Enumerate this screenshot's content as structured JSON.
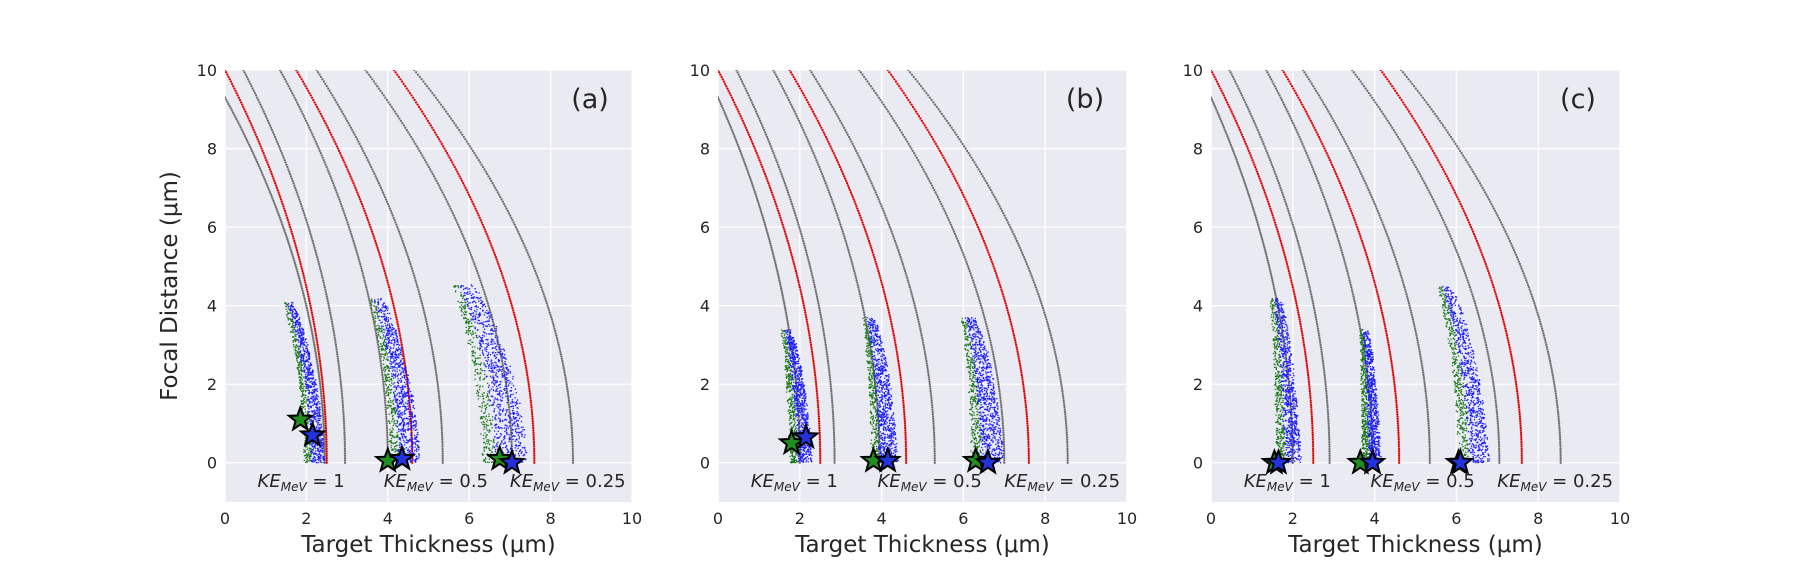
{
  "chart_data": [
    {
      "type": "scatter",
      "panel_label": "(a)",
      "xlabel": "Target Thickness (μm)",
      "ylabel": "Focal Distance (μm)",
      "xlim": [
        0,
        10
      ],
      "ylim": [
        -1,
        10
      ],
      "xticks": [
        "0",
        "2",
        "4",
        "6",
        "8",
        "10"
      ],
      "yticks": [
        "0",
        "2",
        "4",
        "6",
        "8",
        "10"
      ],
      "grid": true,
      "bands": [
        {
          "top": [
            1.45,
            4.1
          ],
          "bottom": [
            1.95,
            0.0
          ],
          "width": 0.5,
          "green_frac": 0.35
        },
        {
          "top": [
            3.55,
            4.2
          ],
          "bottom": [
            4.05,
            0.0
          ],
          "width": 0.75,
          "green_frac": 0.3
        },
        {
          "top": [
            5.6,
            4.55
          ],
          "bottom": [
            6.3,
            0.0
          ],
          "width": 1.15,
          "green_frac": 0.3
        }
      ],
      "gray_curves": [
        {
          "top": [
            0.0,
            9.3
          ],
          "bottom": [
            2.45,
            0.0
          ]
        },
        {
          "top": [
            0.45,
            10.0
          ],
          "bottom": [
            2.95,
            0.0
          ]
        },
        {
          "top": [
            1.35,
            10.0
          ],
          "bottom": [
            4.0,
            0.0
          ]
        },
        {
          "top": [
            2.25,
            10.0
          ],
          "bottom": [
            5.35,
            0.0
          ]
        },
        {
          "top": [
            3.45,
            10.0
          ],
          "bottom": [
            7.05,
            0.0
          ]
        },
        {
          "top": [
            4.65,
            10.0
          ],
          "bottom": [
            8.55,
            0.0
          ]
        }
      ],
      "red_curves": [
        {
          "top": [
            0.0,
            10.0
          ],
          "bottom": [
            2.5,
            0.0
          ]
        },
        {
          "top": [
            1.75,
            10.0
          ],
          "bottom": [
            4.6,
            0.0
          ]
        },
        {
          "top": [
            4.15,
            10.0
          ],
          "bottom": [
            7.6,
            0.0
          ]
        }
      ],
      "stars": [
        {
          "color": "green",
          "x": 1.85,
          "y": 1.1
        },
        {
          "color": "blue",
          "x": 2.15,
          "y": 0.7
        },
        {
          "color": "green",
          "x": 4.0,
          "y": 0.05
        },
        {
          "color": "blue",
          "x": 4.35,
          "y": 0.1
        },
        {
          "color": "green",
          "x": 6.75,
          "y": 0.1
        },
        {
          "color": "blue",
          "x": 7.05,
          "y": 0.0
        }
      ],
      "annotations": [
        {
          "main": "KE",
          "sub": "MeV",
          "rest": " = 1",
          "x": 0.8,
          "y": -0.62
        },
        {
          "main": "KE",
          "sub": "MeV",
          "rest": " = 0.5",
          "x": 3.9,
          "y": -0.62
        },
        {
          "main": "KE",
          "sub": "MeV",
          "rest": " = 0.25",
          "x": 7.0,
          "y": -0.62
        }
      ]
    },
    {
      "type": "scatter",
      "panel_label": "(b)",
      "xlabel": "Target Thickness (μm)",
      "ylabel": "",
      "xlim": [
        0,
        10
      ],
      "ylim": [
        -1,
        10
      ],
      "xticks": [
        "0",
        "2",
        "4",
        "6",
        "8",
        "10"
      ],
      "yticks": [
        "0",
        "2",
        "4",
        "6",
        "8",
        "10"
      ],
      "grid": true,
      "bands": [
        {
          "top": [
            1.55,
            3.4
          ],
          "bottom": [
            1.75,
            0.0
          ],
          "width": 0.55,
          "green_frac": 0.35
        },
        {
          "top": [
            3.55,
            3.7
          ],
          "bottom": [
            3.75,
            0.0
          ],
          "width": 0.65,
          "green_frac": 0.3
        },
        {
          "top": [
            5.95,
            3.7
          ],
          "bottom": [
            6.2,
            0.0
          ],
          "width": 0.8,
          "green_frac": 0.3
        }
      ],
      "gray_curves": [
        {
          "top": [
            0.0,
            9.3
          ],
          "bottom": [
            2.0,
            0.0
          ]
        },
        {
          "top": [
            0.45,
            10.0
          ],
          "bottom": [
            2.85,
            0.0
          ]
        },
        {
          "top": [
            1.35,
            10.0
          ],
          "bottom": [
            3.95,
            0.0
          ]
        },
        {
          "top": [
            2.25,
            10.0
          ],
          "bottom": [
            5.3,
            0.0
          ]
        },
        {
          "top": [
            3.45,
            10.0
          ],
          "bottom": [
            7.0,
            0.0
          ]
        },
        {
          "top": [
            4.65,
            10.0
          ],
          "bottom": [
            8.55,
            0.0
          ]
        }
      ],
      "red_curves": [
        {
          "top": [
            0.0,
            10.0
          ],
          "bottom": [
            2.5,
            0.0
          ]
        },
        {
          "top": [
            1.75,
            10.0
          ],
          "bottom": [
            4.6,
            0.0
          ]
        },
        {
          "top": [
            4.15,
            10.0
          ],
          "bottom": [
            7.6,
            0.0
          ]
        }
      ],
      "stars": [
        {
          "color": "green",
          "x": 1.8,
          "y": 0.5
        },
        {
          "color": "blue",
          "x": 2.15,
          "y": 0.65
        },
        {
          "color": "green",
          "x": 3.8,
          "y": 0.05
        },
        {
          "color": "blue",
          "x": 4.15,
          "y": 0.05
        },
        {
          "color": "green",
          "x": 6.3,
          "y": 0.05
        },
        {
          "color": "blue",
          "x": 6.6,
          "y": 0.0
        }
      ],
      "annotations": [
        {
          "main": "KE",
          "sub": "MeV",
          "rest": " = 1",
          "x": 0.8,
          "y": -0.62
        },
        {
          "main": "KE",
          "sub": "MeV",
          "rest": " = 0.5",
          "x": 3.9,
          "y": -0.62
        },
        {
          "main": "KE",
          "sub": "MeV",
          "rest": " = 0.25",
          "x": 7.0,
          "y": -0.62
        }
      ]
    },
    {
      "type": "scatter",
      "panel_label": "(c)",
      "xlabel": "Target Thickness (μm)",
      "ylabel": "",
      "xlim": [
        0,
        10
      ],
      "ylim": [
        -1,
        10
      ],
      "xticks": [
        "0",
        "2",
        "4",
        "6",
        "8",
        "10"
      ],
      "yticks": [
        "0",
        "2",
        "4",
        "6",
        "8",
        "10"
      ],
      "grid": true,
      "bands": [
        {
          "top": [
            1.45,
            4.2
          ],
          "bottom": [
            1.6,
            0.0
          ],
          "width": 0.6,
          "green_frac": 0.35
        },
        {
          "top": [
            3.65,
            3.4
          ],
          "bottom": [
            3.7,
            0.0
          ],
          "width": 0.45,
          "green_frac": 0.35
        },
        {
          "top": [
            5.55,
            4.5
          ],
          "bottom": [
            6.05,
            0.0
          ],
          "width": 0.75,
          "green_frac": 0.35
        }
      ],
      "gray_curves": [
        {
          "top": [
            0.0,
            9.3
          ],
          "bottom": [
            2.0,
            0.0
          ]
        },
        {
          "top": [
            0.45,
            10.0
          ],
          "bottom": [
            2.9,
            0.0
          ]
        },
        {
          "top": [
            1.35,
            10.0
          ],
          "bottom": [
            3.95,
            0.0
          ]
        },
        {
          "top": [
            2.25,
            10.0
          ],
          "bottom": [
            5.35,
            0.0
          ]
        },
        {
          "top": [
            3.45,
            10.0
          ],
          "bottom": [
            7.05,
            0.0
          ]
        },
        {
          "top": [
            4.65,
            10.0
          ],
          "bottom": [
            8.55,
            0.0
          ]
        }
      ],
      "red_curves": [
        {
          "top": [
            0.0,
            10.0
          ],
          "bottom": [
            2.5,
            0.0
          ]
        },
        {
          "top": [
            1.75,
            10.0
          ],
          "bottom": [
            4.6,
            0.0
          ]
        },
        {
          "top": [
            4.15,
            10.0
          ],
          "bottom": [
            7.6,
            0.0
          ]
        }
      ],
      "stars": [
        {
          "color": "green",
          "x": 1.55,
          "y": 0.0
        },
        {
          "color": "blue",
          "x": 1.65,
          "y": 0.0
        },
        {
          "color": "green",
          "x": 3.65,
          "y": 0.0
        },
        {
          "color": "blue",
          "x": 3.95,
          "y": 0.0
        },
        {
          "color": "green",
          "x": 6.05,
          "y": 0.0
        },
        {
          "color": "blue",
          "x": 6.1,
          "y": 0.0
        }
      ],
      "annotations": [
        {
          "main": "KE",
          "sub": "MeV",
          "rest": " = 1",
          "x": 0.8,
          "y": -0.62
        },
        {
          "main": "KE",
          "sub": "MeV",
          "rest": " = 0.5",
          "x": 3.9,
          "y": -0.62
        },
        {
          "main": "KE",
          "sub": "MeV",
          "rest": " = 0.25",
          "x": 7.0,
          "y": -0.62
        }
      ]
    }
  ],
  "colors": {
    "plot_background": "#eaeaf2",
    "grid": "#ffffff",
    "gray_curve": "#6e6e6e",
    "red_curve": "#e00000",
    "blue_points": "#1a1aff",
    "green_points": "#1e7a1e",
    "star_green": "#1f8f1f",
    "star_blue": "#2233dd",
    "star_edge": "#000000",
    "text": "#262626"
  }
}
